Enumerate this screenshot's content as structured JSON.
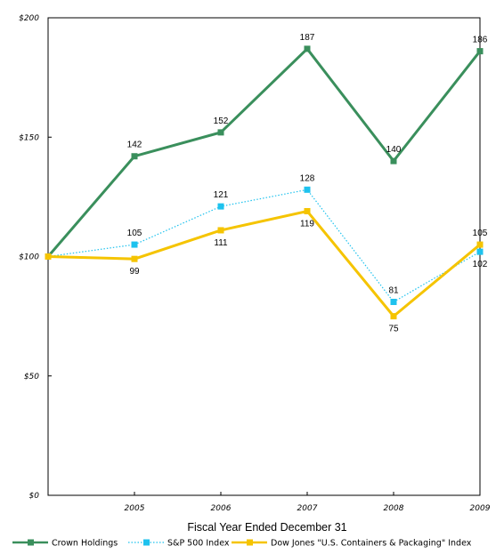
{
  "chart_data": {
    "type": "line",
    "xlabel": "Fiscal Year Ended December 31",
    "ylabel": "",
    "x": [
      "2004",
      "2005",
      "2006",
      "2007",
      "2008",
      "2009"
    ],
    "x_tick_labels": [
      "",
      "2005",
      "2006",
      "2007",
      "2008",
      "2009"
    ],
    "ylim": [
      0,
      200
    ],
    "y_ticks": [
      0,
      50,
      100,
      150,
      200
    ],
    "y_tick_labels": [
      "$0",
      "$50",
      "$100",
      "$150",
      "$200"
    ],
    "grid": false,
    "legend_position": "bottom",
    "series": [
      {
        "name": "Crown Holdings",
        "values": [
          100,
          142,
          152,
          187,
          140,
          186
        ],
        "labels": [
          "",
          "142",
          "152",
          "187",
          "140",
          "186"
        ],
        "label_pos": [
          "above",
          "above",
          "above",
          "above",
          "above",
          "above"
        ],
        "color": "#3a8f5c",
        "style": "solid"
      },
      {
        "name": "S&P 500 Index",
        "values": [
          100,
          105,
          121,
          128,
          81,
          102
        ],
        "labels": [
          "",
          "105",
          "121",
          "128",
          "81",
          "102"
        ],
        "label_pos": [
          "above",
          "above",
          "above",
          "above",
          "above",
          "below"
        ],
        "color": "#1ec2ee",
        "style": "dotted"
      },
      {
        "name": "Dow Jones \"U.S. Containers & Packaging\" Index",
        "values": [
          100,
          99,
          111,
          119,
          75,
          105
        ],
        "labels": [
          "",
          "99",
          "111",
          "119",
          "75",
          "105"
        ],
        "label_pos": [
          "above",
          "below",
          "below",
          "below",
          "below",
          "above"
        ],
        "color": "#f5c400",
        "style": "solid"
      }
    ]
  }
}
